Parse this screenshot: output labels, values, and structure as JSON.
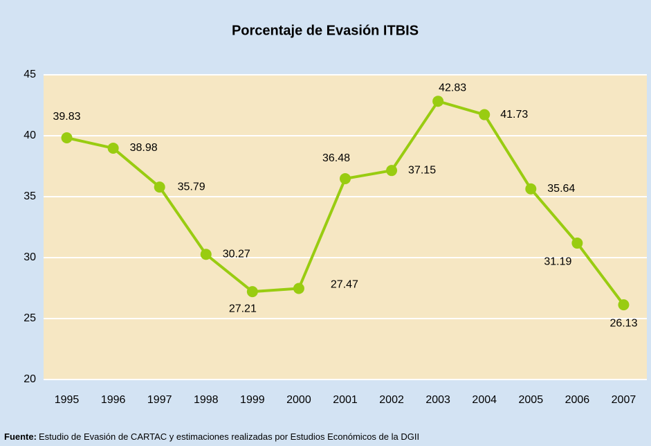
{
  "chart_data": {
    "type": "line",
    "title": "Porcentaje de Evasión ITBIS",
    "categories": [
      "1995",
      "1996",
      "1997",
      "1998",
      "1999",
      "2000",
      "2001",
      "2002",
      "2003",
      "2004",
      "2005",
      "2006",
      "2007"
    ],
    "series": [
      {
        "name": "Porcentaje de Evasión",
        "color": "#99cc11",
        "values": [
          39.83,
          38.98,
          35.79,
          30.27,
          27.21,
          27.47,
          36.48,
          37.15,
          42.83,
          41.73,
          35.64,
          31.19,
          26.13
        ]
      }
    ],
    "ylim": [
      20,
      45
    ],
    "yticks": [
      20,
      25,
      30,
      35,
      40,
      45
    ],
    "grid": true,
    "source_label": "Fuente:",
    "source_text": "Estudio de Evasión de CARTAC y estimaciones realizadas por Estudios Económicos de la DGII"
  }
}
